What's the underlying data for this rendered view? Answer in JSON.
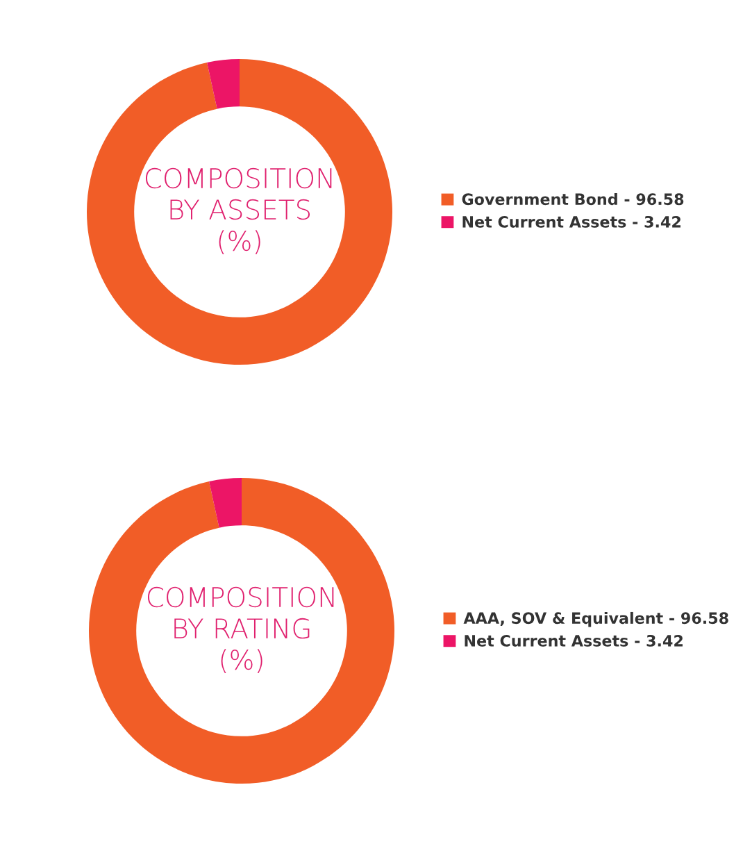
{
  "chart_data": [
    {
      "type": "donut",
      "title": "COMPOSITION BY ASSETS (%)",
      "categories": [
        "Government Bond - 96.58",
        "Net Current Assets - 3.42"
      ],
      "values": [
        96.58,
        3.42
      ],
      "colors": [
        "#f15d27",
        "#ec1566"
      ],
      "legend": "right"
    },
    {
      "type": "donut",
      "title": "COMPOSITION BY RATING (%)",
      "categories": [
        "AAA, SOV & Equivalent - 96.58",
        "Net Current Assets - 3.42"
      ],
      "values": [
        96.58,
        3.42
      ],
      "colors": [
        "#f15d27",
        "#ec1566"
      ],
      "legend": "right"
    }
  ]
}
